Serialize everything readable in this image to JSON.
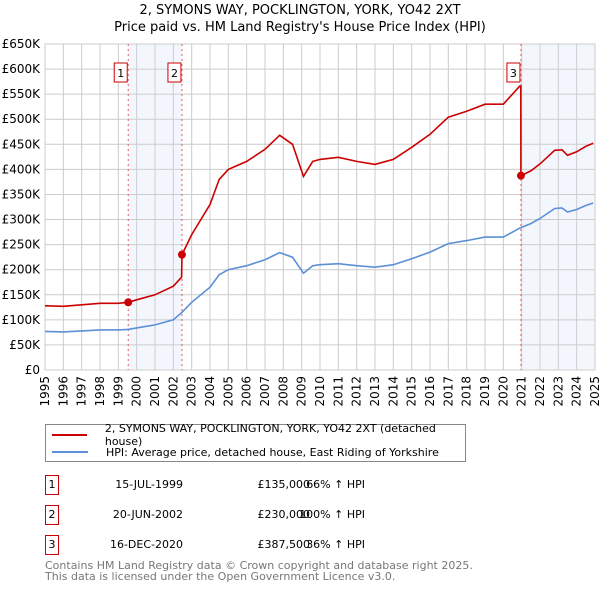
{
  "title_line1": "2, SYMONS WAY, POCKLINGTON, YORK, YO42 2XT",
  "title_line2": "Price paid vs. HM Land Registry's House Price Index (HPI)",
  "chart_data": {
    "type": "line",
    "xlim": [
      1995,
      2025
    ],
    "ylim": [
      0,
      650000
    ],
    "yticks": [
      0,
      50000,
      100000,
      150000,
      200000,
      250000,
      300000,
      350000,
      400000,
      450000,
      500000,
      550000,
      600000,
      650000
    ],
    "ytick_labels": [
      "£0",
      "£50K",
      "£100K",
      "£150K",
      "£200K",
      "£250K",
      "£300K",
      "£350K",
      "£400K",
      "£450K",
      "£500K",
      "£550K",
      "£600K",
      "£650K"
    ],
    "xticks": [
      "1995",
      "1996",
      "1997",
      "1998",
      "1999",
      "2000",
      "2001",
      "2002",
      "2003",
      "2004",
      "2005",
      "2006",
      "2007",
      "2008",
      "2009",
      "2010",
      "2011",
      "2012",
      "2013",
      "2014",
      "2015",
      "2016",
      "2017",
      "2018",
      "2019",
      "2020",
      "2021",
      "2022",
      "2023",
      "2024",
      "2025"
    ],
    "grid": true,
    "shaded_ranges": [
      [
        1999.54,
        2002.47
      ],
      [
        2020.96,
        2025
      ]
    ],
    "series": [
      {
        "name": "2, SYMONS WAY, POCKLINGTON, YORK, YO42 2XT (detached house)",
        "color": "#cc0000",
        "x": [
          1995,
          1996,
          1997,
          1998,
          1999,
          1999.54,
          2000,
          2001,
          2002,
          2002.45,
          2002.47,
          2003,
          2004,
          2004.5,
          2005,
          2006,
          2007,
          2007.8,
          2008.5,
          2009.1,
          2009.6,
          2010,
          2011,
          2012,
          2013,
          2014,
          2015,
          2016,
          2017,
          2018,
          2019,
          2020,
          2020.9,
          2020.95,
          2020.96,
          2021.5,
          2022,
          2022.8,
          2023.2,
          2023.5,
          2024,
          2024.5,
          2024.9
        ],
        "y": [
          128000,
          127000,
          130000,
          133000,
          133000,
          135000,
          140000,
          150000,
          167000,
          185000,
          230000,
          270000,
          330000,
          380000,
          400000,
          416000,
          440000,
          468000,
          450000,
          386000,
          416000,
          420000,
          424000,
          416000,
          410000,
          420000,
          444000,
          470000,
          504000,
          516000,
          530000,
          530000,
          566000,
          566000,
          387500,
          397000,
          411000,
          438000,
          439000,
          428000,
          435000,
          446000,
          452000
        ]
      },
      {
        "name": "HPI: Average price, detached house, East Riding of Yorkshire",
        "color": "#5b8fd6",
        "x": [
          1995,
          1996,
          1997,
          1998,
          1999,
          1999.54,
          2000,
          2001,
          2002,
          2002.47,
          2003,
          2004,
          2004.5,
          2005,
          2006,
          2007,
          2007.8,
          2008.5,
          2009.1,
          2009.6,
          2010,
          2011,
          2012,
          2013,
          2014,
          2015,
          2016,
          2017,
          2018,
          2019,
          2020,
          2020.9,
          2020.96,
          2021.5,
          2022,
          2022.8,
          2023.2,
          2023.5,
          2024,
          2024.5,
          2024.9
        ],
        "y": [
          77000,
          76000,
          78000,
          80000,
          80000,
          81000,
          84000,
          90000,
          100000,
          115000,
          135000,
          165000,
          190000,
          200000,
          208000,
          220000,
          234000,
          225000,
          193000,
          208000,
          210000,
          212000,
          208000,
          205000,
          210000,
          222000,
          235000,
          252000,
          258000,
          265000,
          265000,
          283000,
          284000,
          292000,
          302000,
          322000,
          323000,
          315000,
          320000,
          328000,
          333000
        ]
      }
    ],
    "sales": [
      {
        "n": "1",
        "x": 1999.54,
        "price": 135000
      },
      {
        "n": "2",
        "x": 2002.47,
        "price": 230000
      },
      {
        "n": "3",
        "x": 2020.96,
        "price": 387500
      }
    ]
  },
  "legend": {
    "red": "2, SYMONS WAY, POCKLINGTON, YORK, YO42 2XT (detached house)",
    "blue": "HPI: Average price, detached house, East Riding of Yorkshire"
  },
  "table": [
    {
      "n": "1",
      "date": "15-JUL-1999",
      "price": "£135,000",
      "hpi": "66% ↑ HPI"
    },
    {
      "n": "2",
      "date": "20-JUN-2002",
      "price": "£230,000",
      "hpi": "100% ↑ HPI"
    },
    {
      "n": "3",
      "date": "16-DEC-2020",
      "price": "£387,500",
      "hpi": "36% ↑ HPI"
    }
  ],
  "footer_line1": "Contains HM Land Registry data © Crown copyright and database right 2025.",
  "footer_line2": "This data is licensed under the Open Government Licence v3.0."
}
